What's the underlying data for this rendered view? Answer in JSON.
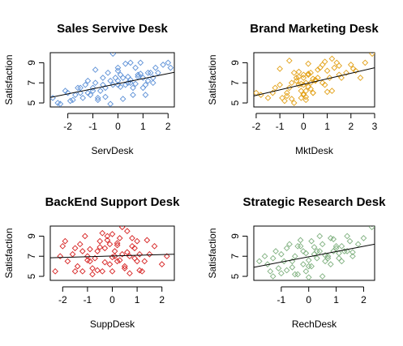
{
  "chart_data": [
    {
      "type": "scatter",
      "title": "Sales Servive Desk",
      "xlabel": "ServDesk",
      "ylabel": "Satisfaction",
      "xlim": [
        -2.7,
        2.25
      ],
      "ylim": [
        4.6,
        10.0
      ],
      "xticks": [
        -2,
        -1,
        0,
        1,
        2
      ],
      "yticks": [
        5,
        7,
        9
      ],
      "color": "#5b8fd6",
      "fit": {
        "x1": -2.7,
        "y1": 5.55,
        "x2": 2.25,
        "y2": 8.05
      },
      "x": [
        -2.6,
        -2.4,
        -2.3,
        -2.1,
        -2.0,
        -1.9,
        -1.7,
        -1.6,
        -1.5,
        -1.4,
        -1.3,
        -1.2,
        -1.1,
        -1.0,
        -0.9,
        -0.8,
        -0.7,
        -0.6,
        -0.5,
        -0.4,
        -0.3,
        -0.2,
        -0.1,
        0.0,
        0.1,
        0.2,
        0.3,
        0.4,
        0.5,
        0.6,
        0.7,
        0.8,
        0.9,
        1.0,
        1.1,
        1.2,
        1.3,
        1.4,
        1.5,
        1.8,
        2.0,
        2.1,
        -1.0,
        -0.5,
        0.0,
        0.5,
        1.0,
        -1.5,
        0.3,
        0.8,
        -0.2,
        -0.8,
        0.6,
        1.2,
        -1.2,
        0.0,
        0.4,
        -0.6,
        1.6,
        0.2,
        -0.3,
        0.9,
        -0.9,
        0.1,
        1.4,
        0.7,
        -1.8,
        0.0,
        0.5,
        1.1
      ],
      "y": [
        5.5,
        5.0,
        4.9,
        6.2,
        6.0,
        5.2,
        5.8,
        6.5,
        6.0,
        5.5,
        6.8,
        7.2,
        5.8,
        6.5,
        7.0,
        5.5,
        6.2,
        7.5,
        5.6,
        8.0,
        7.2,
        6.8,
        7.5,
        8.2,
        7.8,
        7.5,
        8.9,
        7.0,
        7.3,
        6.5,
        8.5,
        7.8,
        9.0,
        7.5,
        6.8,
        7.2,
        8.0,
        7.5,
        8.5,
        8.8,
        9.0,
        8.5,
        6.2,
        6.5,
        6.8,
        7.0,
        6.5,
        6.5,
        6.8,
        7.6,
        9.9,
        5.3,
        5.8,
        8.0,
        6.0,
        7.2,
        7.6,
        6.8,
        8.0,
        5.4,
        4.9,
        7.9,
        8.3,
        6.6,
        7.0,
        6.9,
        5.3,
        8.5,
        9.0,
        5.8
      ]
    },
    {
      "type": "scatter",
      "title": "Brand Marketing Desk",
      "xlabel": "MktDesk",
      "ylabel": "Satisfaction",
      "xlim": [
        -2.1,
        3.0
      ],
      "ylim": [
        4.6,
        10.0
      ],
      "xticks": [
        -2,
        -1,
        0,
        1,
        2,
        3
      ],
      "yticks": [
        5,
        7,
        9
      ],
      "color": "#e3a21a",
      "fit": {
        "x1": -2.1,
        "y1": 5.7,
        "x2": 3.0,
        "y2": 8.5
      },
      "x": [
        -2.0,
        -1.8,
        -1.5,
        -1.3,
        -1.2,
        -1.0,
        -0.9,
        -0.8,
        -0.7,
        -0.6,
        -0.5,
        -0.4,
        -0.3,
        -0.2,
        -0.1,
        0.0,
        0.1,
        0.2,
        0.3,
        0.4,
        0.5,
        0.6,
        0.7,
        0.8,
        0.9,
        1.0,
        1.1,
        1.2,
        1.3,
        1.4,
        1.5,
        1.6,
        1.8,
        2.0,
        2.2,
        2.4,
        2.6,
        2.9,
        -0.1,
        0.0,
        0.1,
        0.2,
        -0.3,
        -0.2,
        0.3,
        0.4,
        -0.5,
        0.0,
        0.2,
        0.6,
        1.0,
        -1.0,
        -0.6,
        0.8,
        0.1,
        -0.4,
        0.5,
        0.0,
        1.2,
        -0.2,
        0.3,
        -0.1,
        0.0,
        0.2,
        0.4,
        0.1,
        -0.7,
        0.9,
        1.5,
        2.1
      ],
      "y": [
        6.0,
        5.8,
        5.5,
        6.0,
        6.5,
        6.8,
        5.5,
        5.2,
        6.0,
        6.5,
        7.0,
        8.0,
        7.5,
        6.8,
        6.2,
        7.5,
        5.6,
        7.8,
        8.0,
        6.0,
        7.2,
        7.5,
        8.5,
        7.0,
        6.8,
        8.2,
        7.5,
        6.2,
        8.5,
        9.0,
        7.8,
        7.5,
        8.0,
        8.8,
        8.2,
        7.5,
        9.0,
        9.9,
        5.5,
        5.8,
        6.2,
        6.6,
        7.2,
        7.6,
        7.0,
        7.4,
        5.4,
        6.8,
        7.9,
        8.3,
        6.1,
        8.4,
        9.2,
        8.8,
        5.3,
        5.0,
        7.3,
        7.8,
        9.4,
        8.1,
        6.4,
        6.9,
        5.9,
        8.9,
        6.0,
        7.0,
        5.7,
        9.1,
        8.7,
        8.4
      ]
    },
    {
      "type": "scatter",
      "title": "BackEnd Support Desk",
      "xlabel": "SuppDesk",
      "ylabel": "Satisfaction",
      "xlim": [
        -2.5,
        2.5
      ],
      "ylim": [
        4.6,
        10.0
      ],
      "xticks": [
        -2,
        -1,
        0,
        1,
        2
      ],
      "yticks": [
        5,
        7,
        9
      ],
      "color": "#d62020",
      "fit": {
        "x1": -2.5,
        "y1": 6.85,
        "x2": 2.5,
        "y2": 7.2
      },
      "x": [
        -2.3,
        -2.1,
        -2.0,
        -1.9,
        -1.8,
        -1.6,
        -1.5,
        -1.4,
        -1.3,
        -1.2,
        -1.1,
        -1.0,
        -0.9,
        -0.8,
        -0.7,
        -0.6,
        -0.5,
        -0.4,
        -0.3,
        -0.2,
        -0.1,
        0.0,
        0.1,
        0.2,
        0.3,
        0.4,
        0.5,
        0.6,
        0.7,
        0.8,
        0.9,
        1.0,
        1.1,
        1.2,
        1.3,
        1.5,
        1.7,
        2.0,
        2.2,
        -1.2,
        -0.8,
        0.0,
        0.5,
        1.0,
        -0.5,
        0.2,
        0.8,
        -1.5,
        0.3,
        -0.2,
        0.0,
        0.1,
        -0.1,
        0.6,
        -0.6,
        1.4,
        -1.0,
        0.4,
        0.9,
        -0.3,
        0.7,
        -0.4,
        1.1,
        -0.9,
        0.2
      ],
      "y": [
        5.5,
        7.0,
        8.0,
        8.5,
        6.5,
        7.2,
        5.5,
        6.0,
        8.2,
        7.5,
        9.0,
        7.0,
        6.5,
        5.8,
        6.8,
        7.5,
        8.5,
        5.5,
        7.8,
        9.0,
        8.2,
        9.2,
        7.5,
        6.5,
        8.8,
        7.2,
        6.0,
        9.5,
        7.0,
        8.0,
        6.8,
        8.5,
        7.2,
        5.5,
        6.5,
        7.2,
        8.0,
        6.2,
        7.0,
        5.5,
        5.2,
        5.5,
        5.8,
        6.5,
        7.9,
        8.3,
        8.8,
        7.8,
        6.6,
        8.6,
        6.9,
        7.0,
        6.2,
        7.4,
        5.6,
        8.6,
        6.6,
        9.9,
        7.8,
        6.4,
        5.3,
        9.3,
        5.6,
        7.7,
        8.1
      ]
    },
    {
      "type": "scatter",
      "title": "Strategic Research Desk",
      "xlabel": "RechDesk",
      "ylabel": "Satisfaction",
      "xlim": [
        -2.0,
        2.4
      ],
      "ylim": [
        4.6,
        10.0
      ],
      "xticks": [
        -1,
        0,
        1,
        2
      ],
      "yticks": [
        5,
        7,
        9
      ],
      "color": "#7fb07f",
      "fit": {
        "x1": -2.0,
        "y1": 5.9,
        "x2": 2.4,
        "y2": 8.2
      },
      "x": [
        -1.8,
        -1.6,
        -1.5,
        -1.4,
        -1.3,
        -1.2,
        -1.1,
        -1.0,
        -0.9,
        -0.8,
        -0.7,
        -0.6,
        -0.5,
        -0.4,
        -0.3,
        -0.2,
        -0.1,
        0.0,
        0.1,
        0.2,
        0.3,
        0.4,
        0.5,
        0.6,
        0.7,
        0.8,
        0.9,
        1.0,
        1.1,
        1.2,
        1.3,
        1.4,
        1.5,
        1.6,
        1.8,
        2.0,
        2.3,
        -0.5,
        0.0,
        0.5,
        1.0,
        -1.0,
        0.2,
        0.8,
        -0.3,
        0.4,
        1.2,
        -0.8,
        0.6,
        0.0,
        -0.6,
        1.6,
        0.1,
        -0.2,
        0.9,
        -1.3,
        0.3,
        1.1,
        -0.4,
        0.7,
        1.4,
        -0.1
      ],
      "y": [
        6.5,
        7.0,
        6.2,
        5.5,
        6.8,
        7.5,
        5.8,
        7.2,
        6.5,
        7.8,
        8.2,
        6.5,
        7.0,
        5.2,
        8.0,
        7.5,
        5.5,
        6.0,
        8.5,
        7.2,
        6.8,
        7.5,
        8.2,
        6.5,
        7.0,
        8.8,
        7.5,
        7.8,
        6.8,
        8.0,
        7.5,
        9.0,
        8.5,
        7.0,
        8.2,
        8.8,
        9.9,
        5.2,
        4.9,
        5.0,
        8.0,
        5.3,
        7.9,
        6.2,
        8.6,
        9.0,
        6.5,
        5.6,
        7.1,
        6.6,
        5.9,
        7.4,
        6.0,
        6.2,
        8.7,
        5.0,
        7.5,
        7.3,
        8.0,
        6.8,
        7.5,
        7.3
      ]
    }
  ]
}
